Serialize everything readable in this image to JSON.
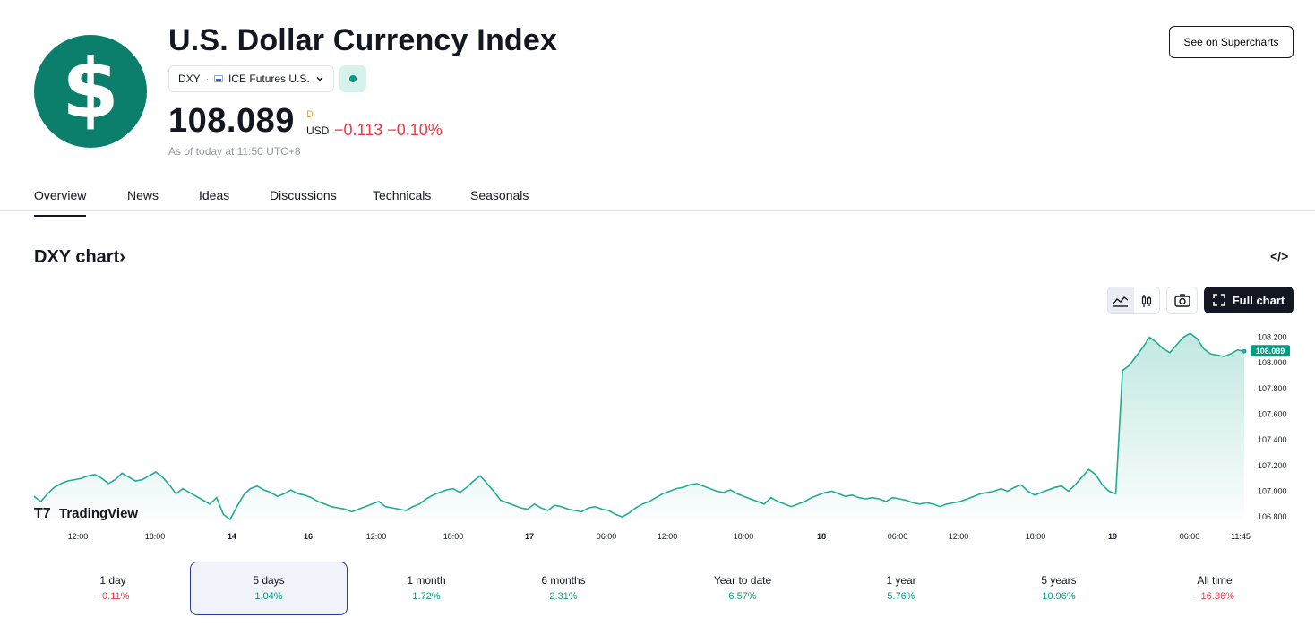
{
  "header": {
    "logo_glyph": "$",
    "title": "U.S. Dollar Currency Index",
    "symbol": "DXY",
    "exchange": "ICE Futures U.S.",
    "price": "108.089",
    "price_flag": "D",
    "currency": "USD",
    "change": "−0.113",
    "change_pct": "−0.10%",
    "as_of": "As of today at 11:50 UTC+8",
    "supercharts_label": "See on Supercharts"
  },
  "tabs": [
    "Overview",
    "News",
    "Ideas",
    "Discussions",
    "Technicals",
    "Seasonals"
  ],
  "section": {
    "title": "DXY chart",
    "title_arrow": "›",
    "embed_icon": "</>",
    "full_chart_label": "Full chart",
    "brand": "TradingView"
  },
  "colors": {
    "accent_green": "#089981",
    "negative_red": "#f23645",
    "line": "#22ab94",
    "logo_bg": "#0c7f6c"
  },
  "chart_data": {
    "type": "area",
    "series": [
      {
        "values": [
          106.96,
          106.92,
          106.98,
          107.03,
          107.06,
          107.08,
          107.09,
          107.1,
          107.12,
          107.13,
          107.1,
          107.06,
          107.09,
          107.14,
          107.11,
          107.08,
          107.09,
          107.12,
          107.15,
          107.11,
          107.05,
          106.98,
          107.02,
          106.99,
          106.96,
          106.93,
          106.9,
          106.95,
          106.82,
          106.78,
          106.88,
          106.97,
          107.02,
          107.04,
          107.01,
          106.99,
          106.96,
          106.98,
          107.01,
          106.98,
          106.97,
          106.95,
          106.92,
          106.9,
          106.88,
          106.87,
          106.86,
          106.84,
          106.86,
          106.88,
          106.9,
          106.92,
          106.88,
          106.87,
          106.86,
          106.85,
          106.88,
          106.9,
          106.94,
          106.97,
          106.99,
          107.01,
          107.02,
          106.99,
          107.03,
          107.08,
          107.12,
          107.06,
          107.0,
          106.93,
          106.91,
          106.89,
          106.87,
          106.86,
          106.9,
          106.87,
          106.85,
          106.89,
          106.88,
          106.86,
          106.85,
          106.84,
          106.87,
          106.88,
          106.86,
          106.85,
          106.82,
          106.8,
          106.83,
          106.87,
          106.9,
          106.92,
          106.95,
          106.98,
          107.0,
          107.02,
          107.03,
          107.05,
          107.06,
          107.04,
          107.02,
          107.0,
          106.99,
          107.01,
          106.98,
          106.96,
          106.94,
          106.92,
          106.9,
          106.95,
          106.92,
          106.9,
          106.88,
          106.9,
          106.92,
          106.95,
          106.97,
          106.99,
          107.0,
          106.98,
          106.96,
          106.97,
          106.95,
          106.94,
          106.95,
          106.94,
          106.92,
          106.95,
          106.94,
          106.93,
          106.91,
          106.9,
          106.91,
          106.9,
          106.88,
          106.9,
          106.91,
          106.92,
          106.94,
          106.96,
          106.98,
          106.99,
          107.0,
          107.02,
          107.0,
          107.03,
          107.05,
          107.0,
          106.97,
          106.99,
          107.01,
          107.03,
          107.04,
          107.0,
          107.05,
          107.11,
          107.17,
          107.13,
          107.05,
          107.0,
          106.98,
          107.94,
          107.98,
          108.05,
          108.12,
          108.2,
          108.16,
          108.11,
          108.08,
          108.14,
          108.2,
          108.23,
          108.19,
          108.11,
          108.07,
          108.06,
          108.05,
          108.07,
          108.1,
          108.09
        ]
      }
    ],
    "x_ticks": [
      "12:00",
      "18:00",
      "14",
      "16",
      "12:00",
      "18:00",
      "17",
      "06:00",
      "12:00",
      "18:00",
      "18",
      "06:00",
      "12:00",
      "18:00",
      "19",
      "06:00",
      "11:45"
    ],
    "y_ticks": [
      "108.200",
      "108.000",
      "107.800",
      "107.600",
      "107.400",
      "107.200",
      "107.000",
      "106.800"
    ],
    "ylim": [
      106.78,
      108.28
    ],
    "last_value_label": "108.089"
  },
  "periods": [
    {
      "label": "1 day",
      "value": "−0.11%",
      "positive": false
    },
    {
      "label": "5 days",
      "value": "1.04%",
      "positive": true
    },
    {
      "label": "1 month",
      "value": "1.72%",
      "positive": true
    },
    {
      "label": "6 months",
      "value": "2.31%",
      "positive": true
    },
    {
      "label": "Year to date",
      "value": "6.57%",
      "positive": true
    },
    {
      "label": "1 year",
      "value": "5.76%",
      "positive": true
    },
    {
      "label": "5 years",
      "value": "10.96%",
      "positive": true
    },
    {
      "label": "All time",
      "value": "−16.36%",
      "positive": false
    }
  ]
}
